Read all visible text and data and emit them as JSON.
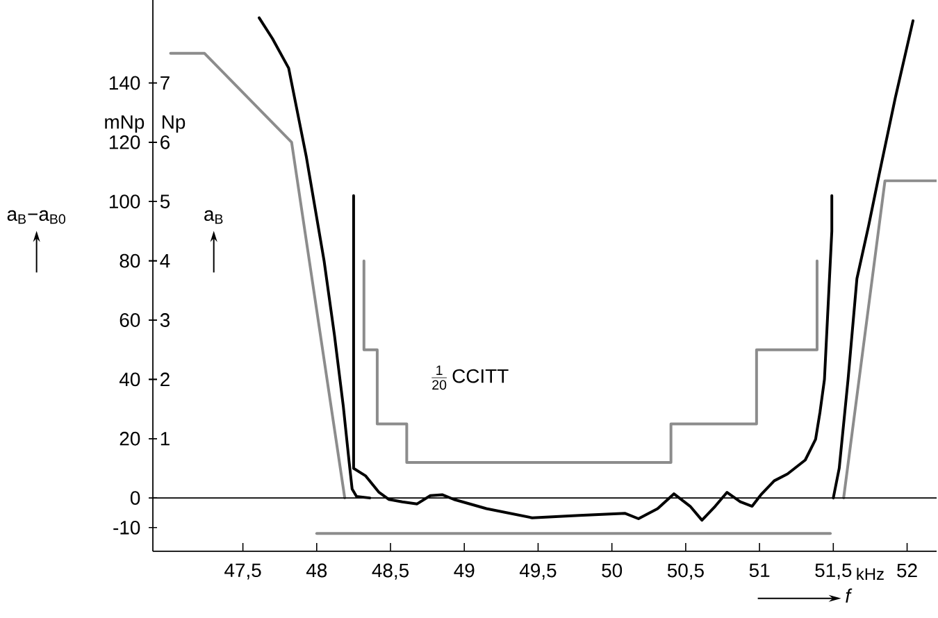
{
  "chart_data": {
    "type": "line",
    "xlabel": "f",
    "ylabel": "a$_{B}$−a$_{B0}$",
    "y2label": "a$_{B}$",
    "annotations": [
      "mNp",
      "Np",
      "kHz",
      "\\frac{\\mathrm{1}}{\\mathrm{20}}\\,\\mathrm{CCITT}"
    ],
    "xlim": [
      46.89,
      52.2
    ],
    "ylim": [
      -18,
      168
    ],
    "y2lim": [
      -0.9,
      8.4
    ],
    "xticks": [
      {
        "value": 47.5,
        "label": "47,5"
      },
      48,
      {
        "value": 48.5,
        "label": "48,5"
      },
      49,
      {
        "value": 49.5,
        "label": "49,5"
      },
      50,
      {
        "value": 50.5,
        "label": "50,5"
      },
      51,
      {
        "value": 51.5,
        "label": "51,5"
      },
      52
    ],
    "yticks": [
      -10,
      0,
      20,
      40,
      60,
      80,
      100,
      120,
      140
    ],
    "y2ticks": [
      1,
      2,
      3,
      4,
      5,
      6,
      7
    ],
    "ref_lines": [
      {
        "axis": "y",
        "value": 0,
        "color": "#000000"
      }
    ],
    "grid": false,
    "marker": "none",
    "line_style": "solid",
    "series": [
      {
        "color": "#8c8c8c",
        "x": [
          47.01,
          47.24,
          47.83,
          48.19
        ],
        "values": [
          150,
          150,
          120,
          0
        ]
      },
      {
        "color": "#8c8c8c",
        "x": [
          51.57,
          51.85,
          52.2
        ],
        "values": [
          0,
          107,
          107
        ]
      },
      {
        "color": "#8c8c8c",
        "x": [
          48.32,
          48.32,
          48.41,
          48.41,
          48.61,
          48.61,
          50.4,
          50.4,
          50.98,
          50.98,
          51.39,
          51.39
        ],
        "values": [
          80,
          50,
          50,
          25,
          25,
          12,
          12,
          25,
          25,
          50,
          50,
          80
        ]
      },
      {
        "color": "#8c8c8c",
        "x": [
          48.0,
          51.48
        ],
        "values": [
          -12,
          -12
        ]
      },
      {
        "color": "#000000",
        "x": [
          47.61,
          47.7,
          47.81,
          47.93,
          48.05,
          48.12,
          48.18,
          48.22,
          48.24,
          48.27,
          48.36
        ],
        "values": [
          162,
          155,
          145,
          115,
          80,
          55,
          31,
          12,
          3,
          0.5,
          0
        ]
      },
      {
        "color": "#000000",
        "x": [
          51.5,
          51.54,
          51.6,
          51.66,
          51.74,
          51.81,
          51.92,
          52.04
        ],
        "values": [
          0,
          10,
          40,
          74,
          92,
          109,
          135,
          161
        ]
      },
      {
        "color": "#000000",
        "x": [
          48.25,
          48.25,
          48.33,
          48.42,
          48.49,
          48.58,
          48.68,
          48.77,
          48.85,
          48.93,
          49.15,
          49.46,
          49.78,
          50.09,
          50.18,
          50.31,
          50.42,
          50.53,
          50.61,
          50.7,
          50.78,
          50.87,
          50.95,
          51.01,
          51.1,
          51.19,
          51.31,
          51.38,
          51.41,
          51.44,
          51.47,
          51.49,
          51.49
        ],
        "values": [
          102,
          10,
          7.5,
          2,
          -0.5,
          -1.3,
          -2,
          0.8,
          1.1,
          -0.5,
          -3.6,
          -6.7,
          -5.9,
          -5.2,
          -7,
          -3.6,
          1.4,
          -2.8,
          -7.5,
          -2.8,
          1.9,
          -1.3,
          -2.8,
          1.1,
          5.8,
          8.1,
          12.8,
          19.8,
          29,
          40,
          70,
          90,
          102
        ]
      }
    ]
  }
}
